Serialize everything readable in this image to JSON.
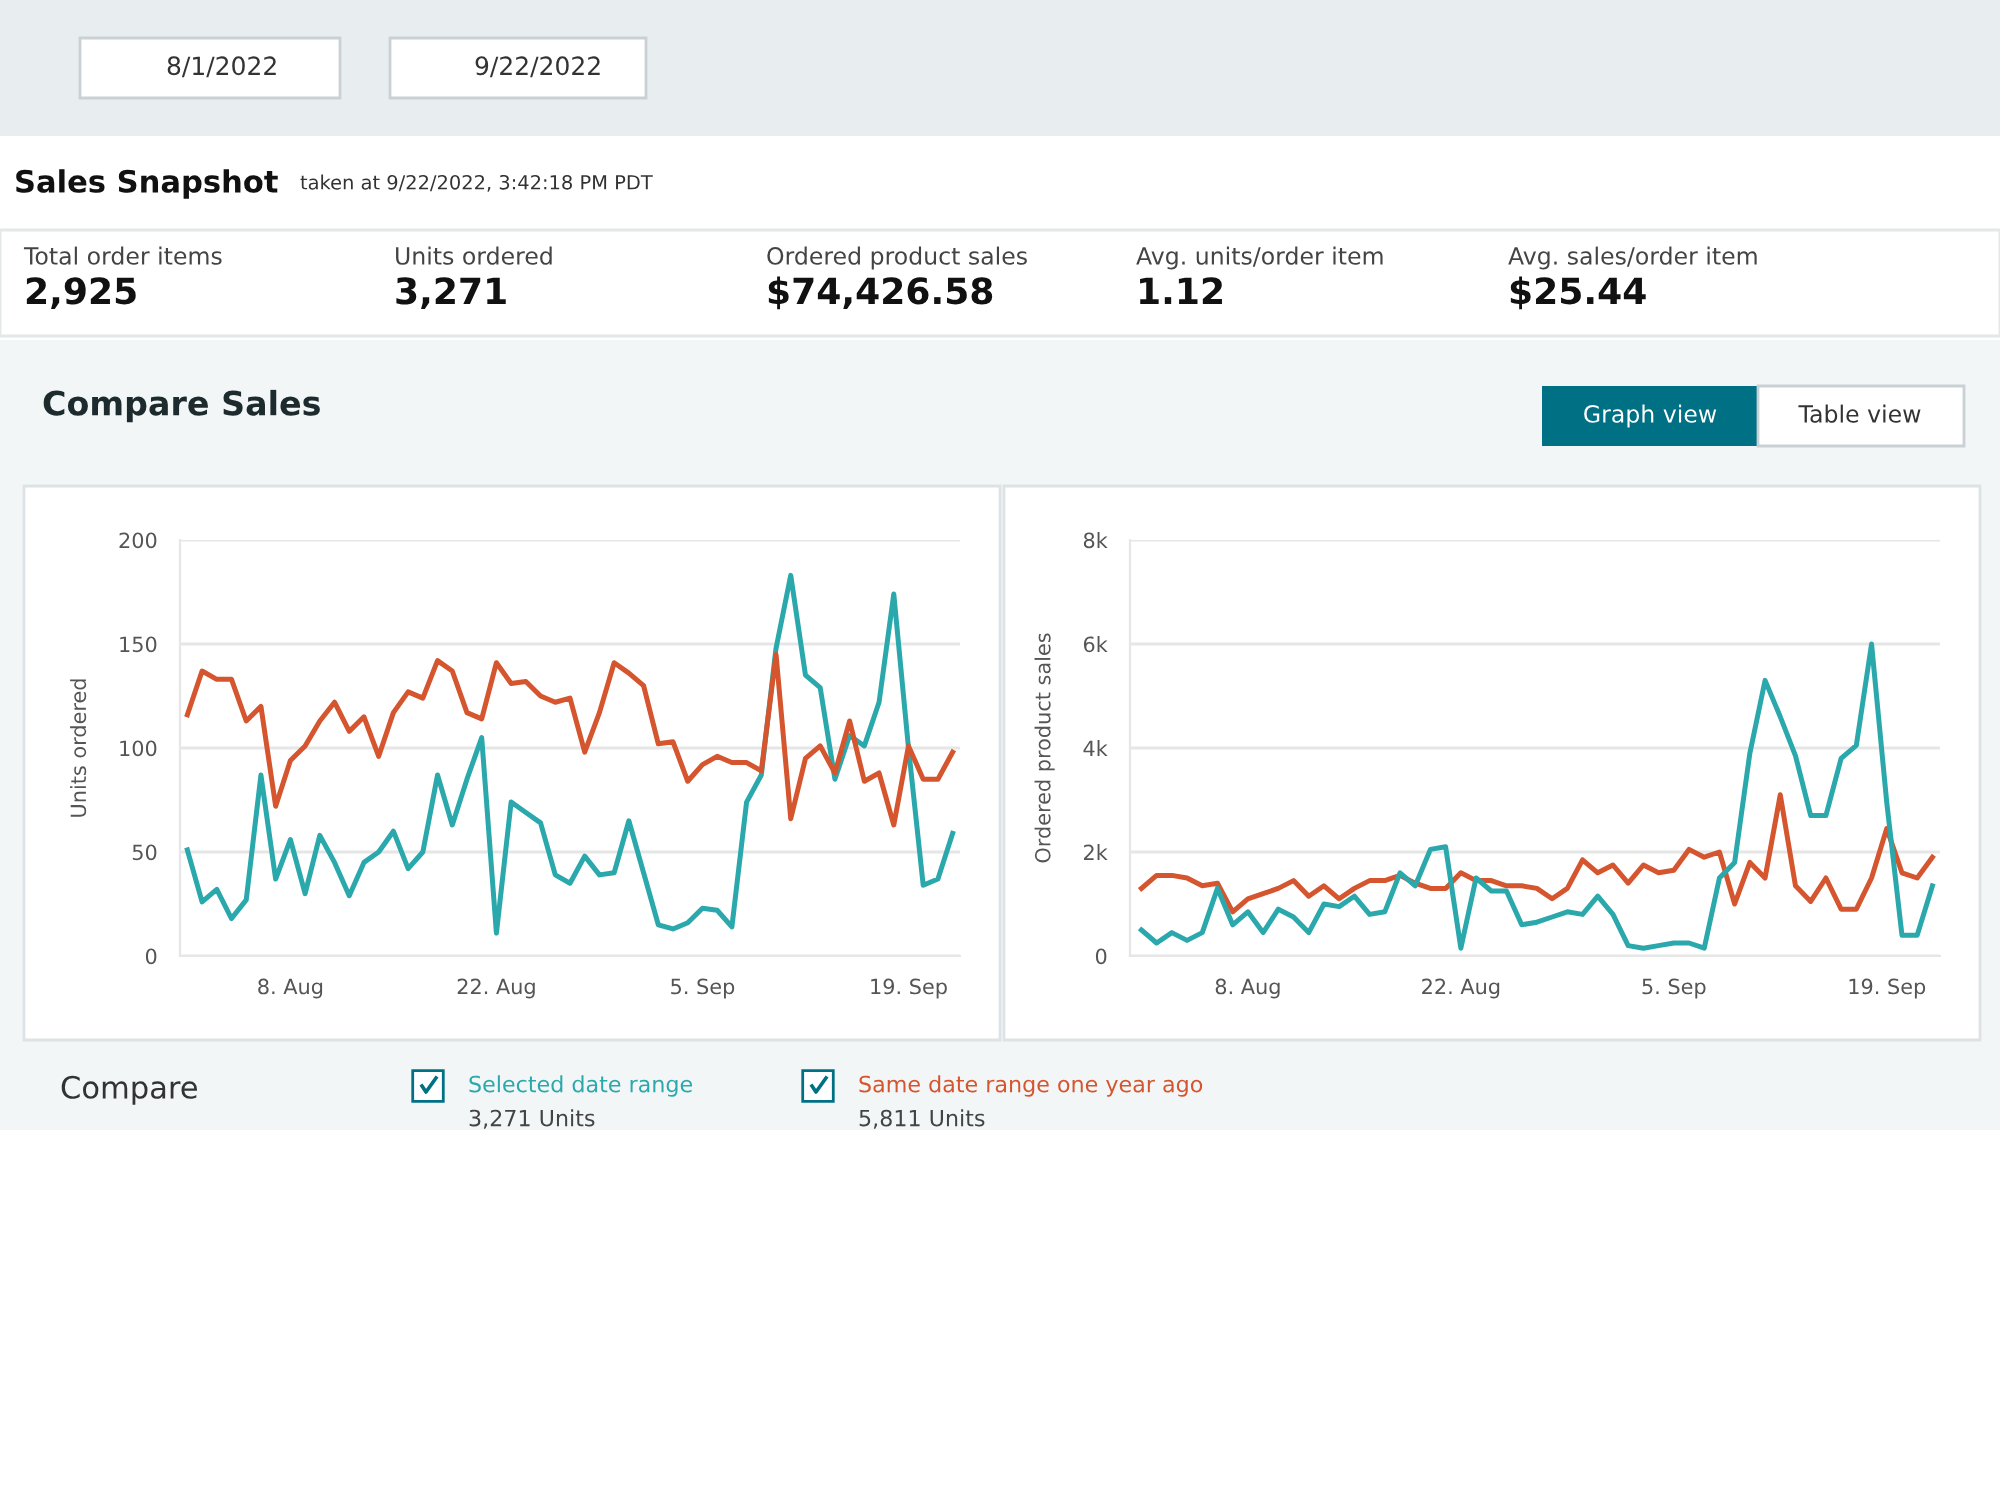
{
  "chart_data": [
    {
      "type": "other",
      "title": "Sales Snapshot",
      "subtitle": "taken at 9/22/2022, 3:42:18 PM PDT",
      "annotations": [
        "8/1/2022",
        "9/22/2022",
        "Total order items",
        "2,925",
        "Units ordered",
        "3,271",
        "Ordered product sales",
        "$74,426.58",
        "Avg. units/order item",
        "1.12",
        "Avg. sales/order item",
        "$25.44",
        "Compare Sales",
        "Graph view",
        "Table view",
        "Compare",
        "3,271 Units",
        "5,811 Units"
      ]
    },
    {
      "type": "line",
      "ylabel": "Units ordered",
      "grid": "y",
      "legend": "bottom",
      "marker": "none",
      "line_style": "solid",
      "x": [
        "2022-08-01",
        "2022-08-02",
        "2022-08-03",
        "2022-08-04",
        "2022-08-05",
        "2022-08-06",
        "2022-08-07",
        "2022-08-08",
        "2022-08-09",
        "2022-08-10",
        "2022-08-11",
        "2022-08-12",
        "2022-08-13",
        "2022-08-14",
        "2022-08-15",
        "2022-08-16",
        "2022-08-17",
        "2022-08-18",
        "2022-08-19",
        "2022-08-20",
        "2022-08-21",
        "2022-08-22",
        "2022-08-23",
        "2022-08-24",
        "2022-08-25",
        "2022-08-26",
        "2022-08-27",
        "2022-08-28",
        "2022-08-29",
        "2022-08-30",
        "2022-08-31",
        "2022-09-01",
        "2022-09-02",
        "2022-09-03",
        "2022-09-04",
        "2022-09-05",
        "2022-09-06",
        "2022-09-07",
        "2022-09-08",
        "2022-09-09",
        "2022-09-10",
        "2022-09-11",
        "2022-09-12",
        "2022-09-13",
        "2022-09-14",
        "2022-09-15",
        "2022-09-16",
        "2022-09-17",
        "2022-09-18",
        "2022-09-19",
        "2022-09-20",
        "2022-09-21",
        "2022-09-22"
      ],
      "xlim": [
        "2022-07-31T12:00",
        "2022-09-22T12:00"
      ],
      "xticks": [
        {
          "value": "2022-08-08",
          "label": "8. Aug"
        },
        {
          "value": "2022-08-22",
          "label": "22. Aug"
        },
        {
          "value": "2022-09-05",
          "label": "5. Sep"
        },
        {
          "value": "2022-09-19",
          "label": "19. Sep"
        }
      ],
      "ylim": [
        0,
        200
      ],
      "yticks": [
        0,
        50,
        100,
        150,
        200
      ],
      "series": [
        {
          "name": "Selected date range",
          "color": "#2aa8ab",
          "values": [
            51,
            26,
            32,
            18,
            27,
            87,
            37,
            56,
            30,
            58,
            45,
            29,
            45,
            50,
            60,
            42,
            50,
            87,
            63,
            85,
            105,
            11,
            74,
            69,
            64,
            39,
            35,
            48,
            39,
            40,
            65,
            40,
            15,
            13,
            16,
            23,
            22,
            14,
            74,
            87,
            148,
            183,
            135,
            129,
            85,
            106,
            101,
            122,
            174,
            100,
            34,
            37,
            59
          ]
        },
        {
          "name": "Same date range one year ago",
          "color": "#d4552e",
          "values": [
            116,
            137,
            133,
            133,
            113,
            120,
            72,
            94,
            101,
            113,
            122,
            108,
            115,
            96,
            117,
            127,
            124,
            142,
            137,
            117,
            114,
            141,
            131,
            132,
            125,
            122,
            124,
            98,
            117,
            141,
            136,
            130,
            102,
            103,
            84,
            92,
            96,
            93,
            93,
            89,
            145,
            66,
            95,
            101,
            88,
            113,
            84,
            88,
            63,
            101,
            85,
            85,
            98
          ]
        }
      ]
    },
    {
      "type": "line",
      "ylabel": "Ordered product sales",
      "grid": "y",
      "marker": "none",
      "line_style": "solid",
      "x": [
        "2022-08-01",
        "2022-08-02",
        "2022-08-03",
        "2022-08-04",
        "2022-08-05",
        "2022-08-06",
        "2022-08-07",
        "2022-08-08",
        "2022-08-09",
        "2022-08-10",
        "2022-08-11",
        "2022-08-12",
        "2022-08-13",
        "2022-08-14",
        "2022-08-15",
        "2022-08-16",
        "2022-08-17",
        "2022-08-18",
        "2022-08-19",
        "2022-08-20",
        "2022-08-21",
        "2022-08-22",
        "2022-08-23",
        "2022-08-24",
        "2022-08-25",
        "2022-08-26",
        "2022-08-27",
        "2022-08-28",
        "2022-08-29",
        "2022-08-30",
        "2022-08-31",
        "2022-09-01",
        "2022-09-02",
        "2022-09-03",
        "2022-09-04",
        "2022-09-05",
        "2022-09-06",
        "2022-09-07",
        "2022-09-08",
        "2022-09-09",
        "2022-09-10",
        "2022-09-11",
        "2022-09-12",
        "2022-09-13",
        "2022-09-14",
        "2022-09-15",
        "2022-09-16",
        "2022-09-17",
        "2022-09-18",
        "2022-09-19",
        "2022-09-20",
        "2022-09-21",
        "2022-09-22"
      ],
      "xlim": [
        "2022-07-31T06:00",
        "2022-09-22T12:00"
      ],
      "xticks": [
        {
          "value": "2022-08-08",
          "label": "8. Aug"
        },
        {
          "value": "2022-08-22",
          "label": "22. Aug"
        },
        {
          "value": "2022-09-05",
          "label": "5. Sep"
        },
        {
          "value": "2022-09-19",
          "label": "19. Sep"
        }
      ],
      "ylim": [
        0,
        8000
      ],
      "yticks": [
        {
          "value": 0,
          "label": "0"
        },
        {
          "value": 2000,
          "label": "2k"
        },
        {
          "value": 4000,
          "label": "4k"
        },
        {
          "value": 6000,
          "label": "6k"
        },
        {
          "value": 8000,
          "label": "8k"
        }
      ],
      "series": [
        {
          "color": "#d4552e",
          "values": [
            1300,
            1550,
            1550,
            1500,
            1350,
            1400,
            850,
            1100,
            1200,
            1300,
            1450,
            1150,
            1350,
            1100,
            1300,
            1450,
            1450,
            1550,
            1400,
            1300,
            1300,
            1600,
            1450,
            1450,
            1350,
            1350,
            1300,
            1100,
            1300,
            1850,
            1600,
            1750,
            1400,
            1750,
            1600,
            1650,
            2050,
            1900,
            2000,
            1000,
            1800,
            1500,
            3100,
            1350,
            1050,
            1500,
            900,
            900,
            1500,
            2450,
            1600,
            1500,
            1900
          ]
        },
        {
          "color": "#2aa8ab",
          "values": [
            500,
            250,
            450,
            300,
            450,
            1300,
            600,
            850,
            450,
            900,
            750,
            450,
            1000,
            950,
            1150,
            800,
            850,
            1600,
            1350,
            2050,
            2100,
            150,
            1500,
            1250,
            1250,
            600,
            650,
            750,
            850,
            800,
            1150,
            800,
            200,
            150,
            200,
            250,
            250,
            150,
            1500,
            1800,
            3900,
            5300,
            4600,
            3850,
            2700,
            2700,
            3800,
            4050,
            6000,
            2950,
            400,
            400,
            1350
          ]
        }
      ]
    }
  ]
}
